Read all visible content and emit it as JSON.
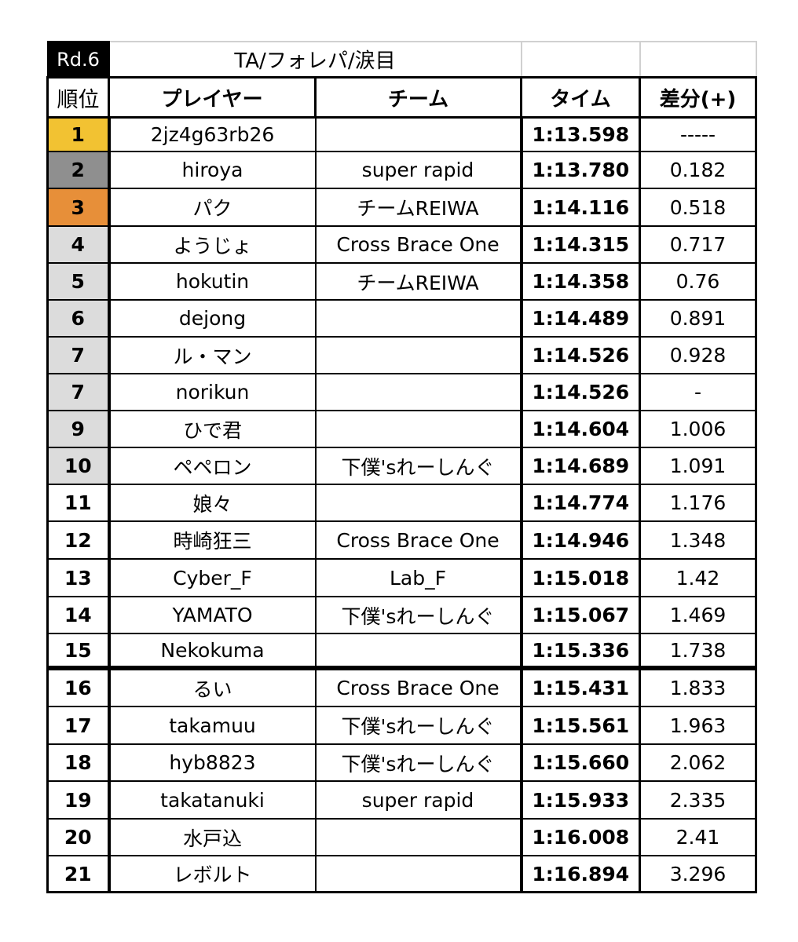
{
  "table": {
    "round": "Rd.6",
    "title": "TA/フォレパ/涙目",
    "headers": {
      "rank": "順位",
      "player": "プレイヤー",
      "team": "チーム",
      "time": "タイム",
      "diff": "差分(+)"
    },
    "row_colors": {
      "gold": "#F2C232",
      "silver": "#8F8F8F",
      "bronze": "#E78F39",
      "top10": "#DCDCDC",
      "default": "#FFFFFF"
    },
    "rows": [
      {
        "rank": "1",
        "player": "2jz4g63rb26",
        "team": "",
        "time": "1:13.598",
        "diff": "-----",
        "tier": "gold"
      },
      {
        "rank": "2",
        "player": "hiroya",
        "team": "super rapid",
        "time": "1:13.780",
        "diff": "0.182",
        "tier": "silver"
      },
      {
        "rank": "3",
        "player": "パク",
        "team": "チームREIWA",
        "time": "1:14.116",
        "diff": "0.518",
        "tier": "bronze"
      },
      {
        "rank": "4",
        "player": "ようじょ",
        "team": "Cross Brace One",
        "time": "1:14.315",
        "diff": "0.717",
        "tier": "top10"
      },
      {
        "rank": "5",
        "player": "hokutin",
        "team": "チームREIWA",
        "time": "1:14.358",
        "diff": "0.76",
        "tier": "top10"
      },
      {
        "rank": "6",
        "player": "dejong",
        "team": "",
        "time": "1:14.489",
        "diff": "0.891",
        "tier": "top10"
      },
      {
        "rank": "7",
        "player": "ル・マン",
        "team": "",
        "time": "1:14.526",
        "diff": "0.928",
        "tier": "top10"
      },
      {
        "rank": "7",
        "player": "norikun",
        "team": "",
        "time": "1:14.526",
        "diff": "-",
        "tier": "top10"
      },
      {
        "rank": "9",
        "player": "ひで君",
        "team": "",
        "time": "1:14.604",
        "diff": "1.006",
        "tier": "top10"
      },
      {
        "rank": "10",
        "player": "ペペロン",
        "team": "下僕'sれーしんぐ",
        "time": "1:14.689",
        "diff": "1.091",
        "tier": "top10"
      },
      {
        "rank": "11",
        "player": "娘々",
        "team": "",
        "time": "1:14.774",
        "diff": "1.176",
        "tier": "default"
      },
      {
        "rank": "12",
        "player": "時崎狂三",
        "team": "Cross Brace One",
        "time": "1:14.946",
        "diff": "1.348",
        "tier": "default"
      },
      {
        "rank": "13",
        "player": "Cyber_F",
        "team": "Lab_F",
        "time": "1:15.018",
        "diff": "1.42",
        "tier": "default"
      },
      {
        "rank": "14",
        "player": "YAMATO",
        "team": "下僕'sれーしんぐ",
        "time": "1:15.067",
        "diff": "1.469",
        "tier": "default"
      },
      {
        "rank": "15",
        "player": "Nekokuma",
        "team": "",
        "time": "1:15.336",
        "diff": "1.738",
        "tier": "default"
      },
      {
        "rank": "16",
        "player": "るい",
        "team": "Cross Brace One",
        "time": "1:15.431",
        "diff": "1.833",
        "tier": "default"
      },
      {
        "rank": "17",
        "player": "takamuu",
        "team": "下僕'sれーしんぐ",
        "time": "1:15.561",
        "diff": "1.963",
        "tier": "default"
      },
      {
        "rank": "18",
        "player": "hyb8823",
        "team": "下僕'sれーしんぐ",
        "time": "1:15.660",
        "diff": "2.062",
        "tier": "default"
      },
      {
        "rank": "19",
        "player": "takatanuki",
        "team": "super rapid",
        "time": "1:15.933",
        "diff": "2.335",
        "tier": "default"
      },
      {
        "rank": "20",
        "player": "水戸込",
        "team": "",
        "time": "1:16.008",
        "diff": "2.41",
        "tier": "default"
      },
      {
        "rank": "21",
        "player": "レボルト",
        "team": "",
        "time": "1:16.894",
        "diff": "3.296",
        "tier": "default"
      }
    ]
  }
}
